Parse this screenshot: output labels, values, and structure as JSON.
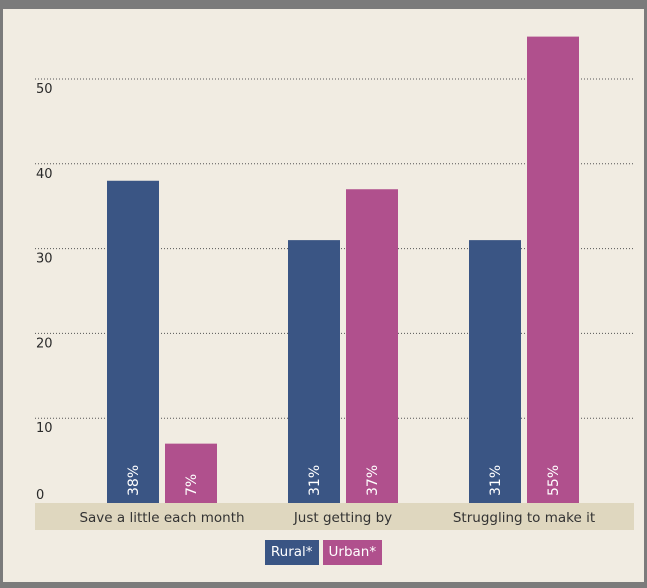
{
  "chart_data": {
    "type": "bar",
    "categories": [
      "Save a little each month",
      "Just getting by",
      "Struggling to make it"
    ],
    "series": [
      {
        "name": "Rural*",
        "values": [
          38,
          31,
          31
        ],
        "color": "#3a5584"
      },
      {
        "name": "Urban*",
        "values": [
          7,
          37,
          55
        ],
        "color": "#b0508d"
      }
    ],
    "data_labels": [
      [
        "38%",
        "31%",
        "31%"
      ],
      [
        "7%",
        "37%",
        "55%"
      ]
    ],
    "yticks": [
      0,
      10,
      20,
      30,
      40,
      50
    ],
    "ylim": [
      0,
      58
    ],
    "grid": "dotted horizontal",
    "legend": "bottom-center",
    "title": "",
    "xlabel": "",
    "ylabel": ""
  }
}
